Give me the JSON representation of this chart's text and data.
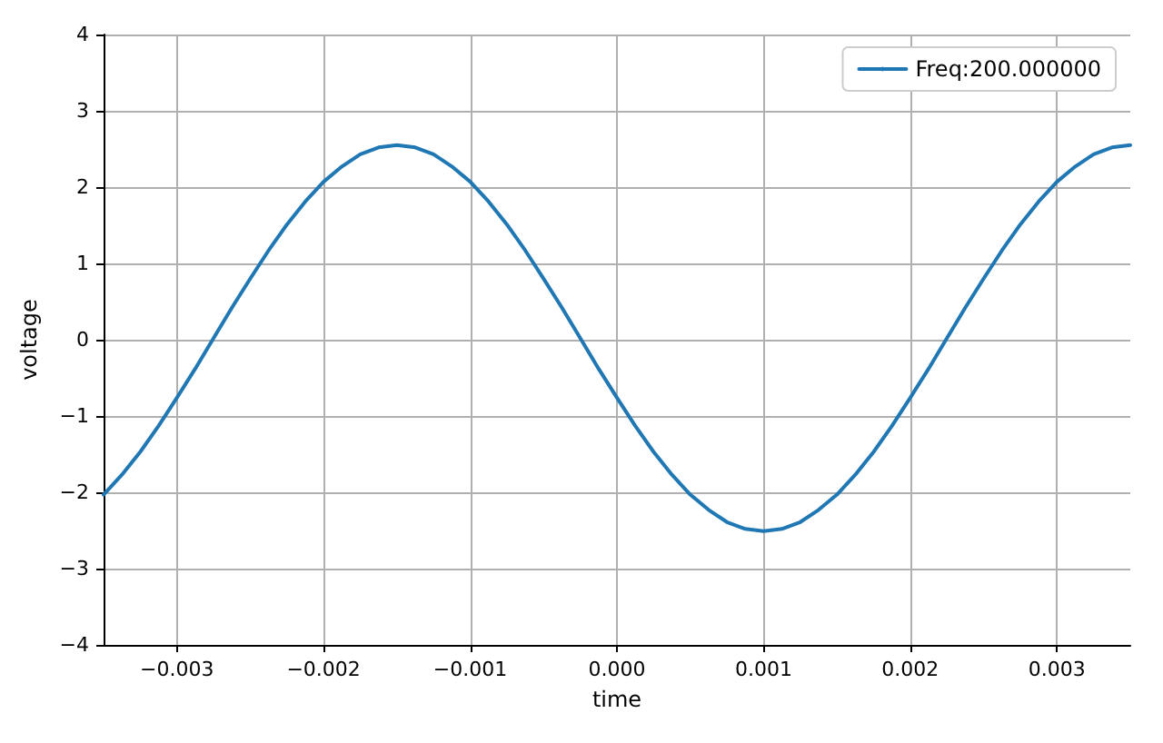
{
  "chart_data": {
    "type": "line",
    "xlabel": "time",
    "ylabel": "voltage",
    "x": [
      -0.0035,
      -0.003375,
      -0.00325,
      -0.003125,
      -0.003,
      -0.002875,
      -0.00275,
      -0.002625,
      -0.0025,
      -0.002375,
      -0.00225,
      -0.002125,
      -0.002,
      -0.001875,
      -0.00175,
      -0.001625,
      -0.0015,
      -0.001375,
      -0.00125,
      -0.001125,
      -0.001,
      -0.000875,
      -0.00075,
      -0.000625,
      -0.0005,
      -0.000375,
      -0.00025,
      -0.000125,
      0,
      0.000125,
      0.00025,
      0.000375,
      0.0005,
      0.000625,
      0.00075,
      0.000875,
      0.001,
      0.001125,
      0.00125,
      0.001375,
      0.0015,
      0.001625,
      0.00175,
      0.001875,
      0.002,
      0.002125,
      0.00225,
      0.002375,
      0.0025,
      0.002625,
      0.00275,
      0.002875,
      0.003,
      0.003125,
      0.00325,
      0.003375,
      0.0035
    ],
    "series": [
      {
        "name": "Freq:200.000000",
        "color": "#1f77b4",
        "values": [
          -2.03,
          -1.77,
          -1.47,
          -1.13,
          -0.76,
          -0.38,
          0.02,
          0.42,
          0.8,
          1.17,
          1.51,
          1.81,
          2.07,
          2.27,
          2.43,
          2.52,
          2.55,
          2.52,
          2.43,
          2.27,
          2.07,
          1.81,
          1.51,
          1.17,
          0.8,
          0.42,
          0.02,
          -0.38,
          -0.76,
          -1.13,
          -1.47,
          -1.77,
          -2.03,
          -2.23,
          -2.39,
          -2.48,
          -2.51,
          -2.48,
          -2.39,
          -2.23,
          -2.03,
          -1.77,
          -1.47,
          -1.13,
          -0.76,
          -0.38,
          0.02,
          0.42,
          0.8,
          1.17,
          1.51,
          1.81,
          2.07,
          2.27,
          2.43,
          2.52,
          2.55
        ]
      }
    ],
    "xlim": [
      -0.0035,
      0.0035
    ],
    "xticks": [
      {
        "value": -0.003,
        "label": "−0.003"
      },
      {
        "value": -0.002,
        "label": "−0.002"
      },
      {
        "value": -0.001,
        "label": "−0.001"
      },
      {
        "value": 0,
        "label": "0.000"
      },
      0.001,
      0.002,
      0.003
    ],
    "ylim": [
      -4,
      4
    ],
    "yticks": [
      {
        "value": -4,
        "label": "−4"
      },
      {
        "value": -3,
        "label": "−3"
      },
      {
        "value": -2,
        "label": "−2"
      },
      {
        "value": -1,
        "label": "−1"
      },
      0,
      1,
      2,
      3,
      4
    ],
    "grid": true,
    "legend": "top right",
    "marker": "none",
    "line_style": "solid"
  }
}
